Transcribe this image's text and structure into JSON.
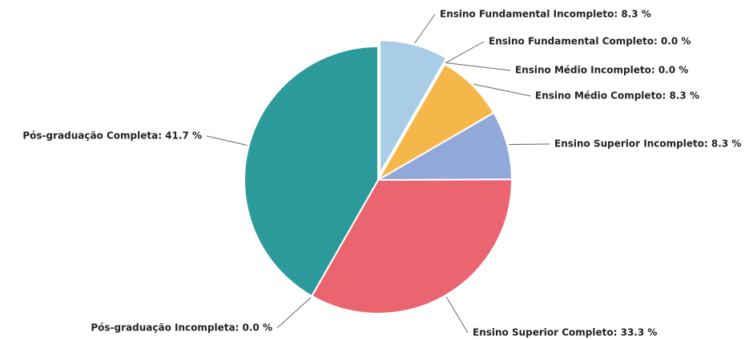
{
  "chart_data": {
    "type": "pie",
    "values": [
      8.3,
      0.0,
      0.0,
      8.3,
      8.3,
      33.3,
      0.0,
      41.7
    ],
    "value_labels": [
      "Ensino Fundamental Incompleto: 8.3 %",
      "Ensino Fundamental Completo: 0.0 %",
      "Ensino Médio Incompleto: 0.0 %",
      "Ensino Médio Completo: 8.3 %",
      "Ensino Superior Incompleto: 8.3 %",
      "Ensino Superior Completo: 33.3 %",
      "Pós-graduação Incompleta: 0.0 %",
      "Pós-graduação Completa: 41.7 %"
    ],
    "colors": [
      "#a9cde6",
      null,
      null,
      "#f5b74a",
      "#91a9d8",
      "#ea6570",
      null,
      "#2c9a9b"
    ]
  }
}
